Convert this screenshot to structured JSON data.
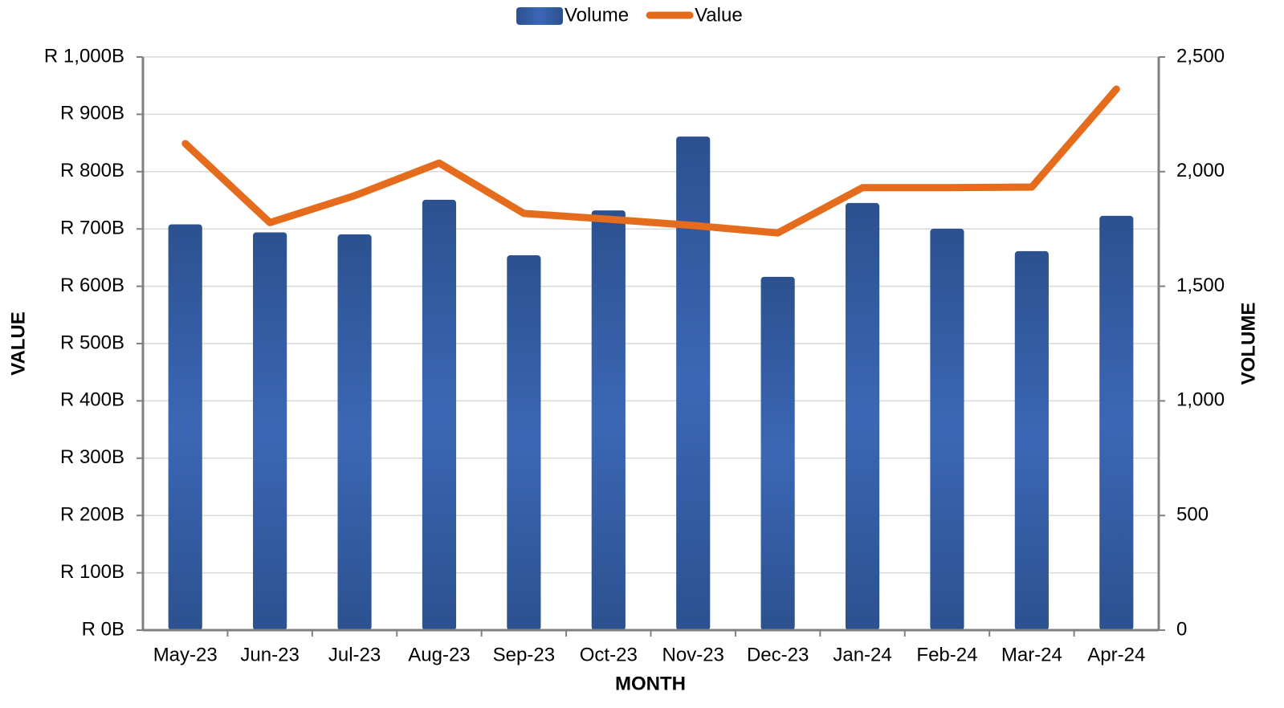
{
  "chart_data": {
    "type": "bar",
    "x_label": "MONTH",
    "y_label": "VALUE",
    "y2_label": "VOLUME",
    "categories": [
      "May-23",
      "Jun-23",
      "Jul-23",
      "Aug-23",
      "Sep-23",
      "Oct-23",
      "Nov-23",
      "Dec-23",
      "Jan-24",
      "Feb-24",
      "Mar-24",
      "Apr-24"
    ],
    "series": [
      {
        "name": "Volume",
        "type": "bar",
        "axis": "y2",
        "color": "#3460a8",
        "values": [
          1770,
          1735,
          1726,
          1877,
          1635,
          1831,
          2153,
          1541,
          1863,
          1751,
          1653,
          1807
        ]
      },
      {
        "name": "Value",
        "type": "line",
        "axis": "y",
        "color": "#e46c1c",
        "values": [
          849,
          711,
          758,
          815,
          727,
          717,
          706,
          693,
          772,
          772,
          773,
          944
        ]
      }
    ],
    "ylim": [
      0,
      1000
    ],
    "yticks": [
      {
        "value": 0,
        "label": "R 0B"
      },
      {
        "value": 100,
        "label": "R 100B"
      },
      {
        "value": 200,
        "label": "R 200B"
      },
      {
        "value": 300,
        "label": "R 300B"
      },
      {
        "value": 400,
        "label": "R 400B"
      },
      {
        "value": 500,
        "label": "R 500B"
      },
      {
        "value": 600,
        "label": "R 600B"
      },
      {
        "value": 700,
        "label": "R 700B"
      },
      {
        "value": 800,
        "label": "R 800B"
      },
      {
        "value": 900,
        "label": "R 900B"
      },
      {
        "value": 1000,
        "label": "R 1,000B"
      }
    ],
    "y2lim": [
      0,
      2500
    ],
    "y2ticks": [
      0,
      500,
      {
        "value": 1000,
        "label": "1,000"
      },
      {
        "value": 1500,
        "label": "1,500"
      },
      {
        "value": 2000,
        "label": "2,000"
      },
      {
        "value": 2500,
        "label": "2,500"
      }
    ],
    "grid": true,
    "legend": "top"
  }
}
